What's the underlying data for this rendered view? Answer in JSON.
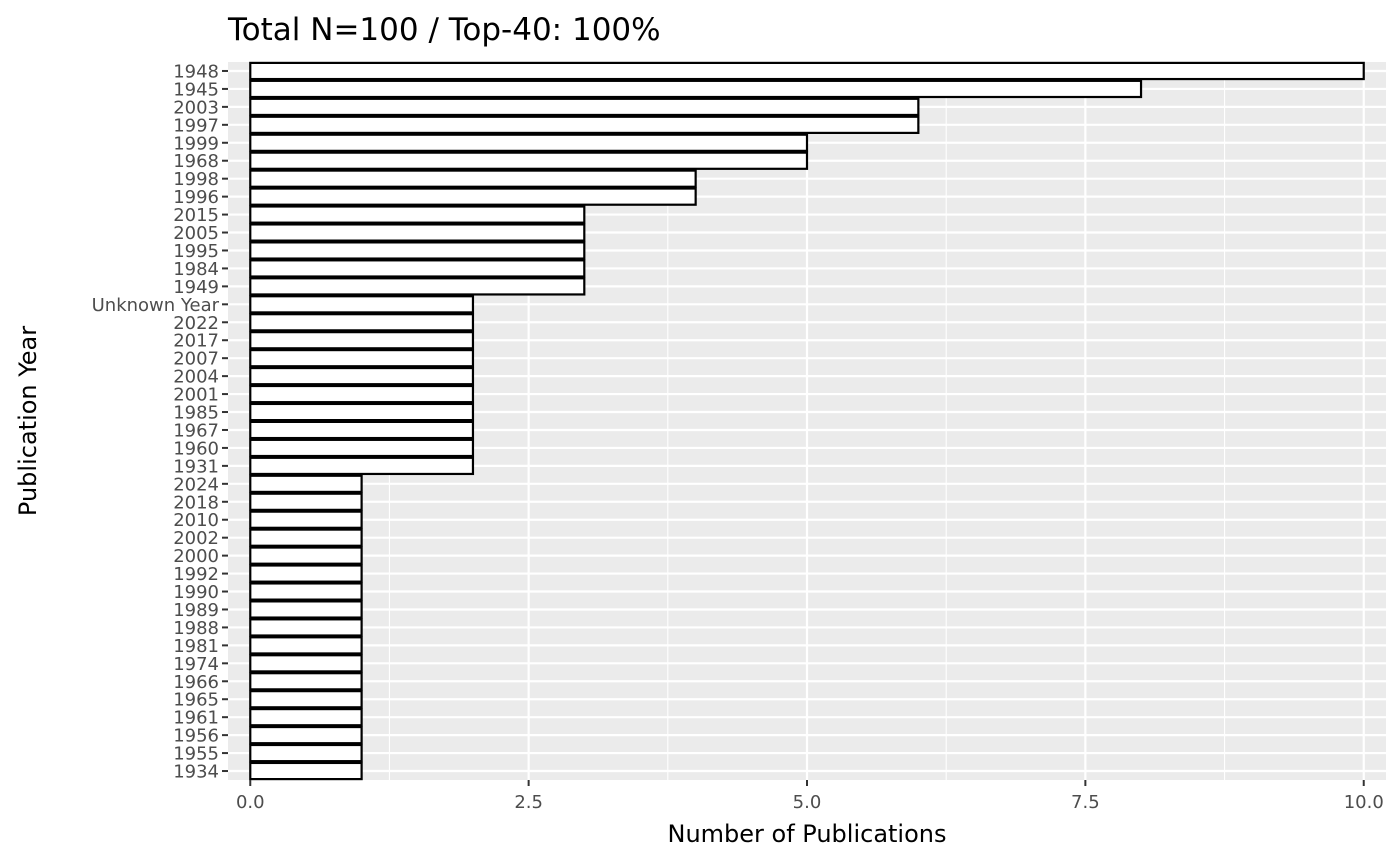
{
  "chart_data": {
    "type": "bar",
    "orientation": "horizontal",
    "title": "Total N=100 / Top-40: 100%",
    "xlabel": "Number of Publications",
    "ylabel": "Publication Year",
    "xlim": [
      -0.2,
      10.2
    ],
    "x_ticks": [
      "0.0",
      "2.5",
      "5.0",
      "7.5",
      "10.0"
    ],
    "x_tick_values": [
      0,
      2.5,
      5,
      7.5,
      10
    ],
    "grid": true,
    "categories": [
      "1948",
      "1945",
      "2003",
      "1997",
      "1999",
      "1968",
      "1998",
      "1996",
      "2015",
      "2005",
      "1995",
      "1984",
      "1949",
      "Unknown Year",
      "2022",
      "2017",
      "2007",
      "2004",
      "2001",
      "1985",
      "1967",
      "1960",
      "1931",
      "2024",
      "2018",
      "2010",
      "2002",
      "2000",
      "1992",
      "1990",
      "1989",
      "1988",
      "1981",
      "1974",
      "1966",
      "1965",
      "1961",
      "1956",
      "1955",
      "1934"
    ],
    "values": [
      10,
      8,
      6,
      6,
      5,
      5,
      4,
      4,
      3,
      3,
      3,
      3,
      3,
      2,
      2,
      2,
      2,
      2,
      2,
      2,
      2,
      2,
      2,
      1,
      1,
      1,
      1,
      1,
      1,
      1,
      1,
      1,
      1,
      1,
      1,
      1,
      1,
      1,
      1,
      1
    ],
    "colors": {
      "panel": "#ebebeb",
      "grid": "#ffffff",
      "bar_fill": "#ffffff",
      "bar_stroke": "#000000"
    }
  }
}
